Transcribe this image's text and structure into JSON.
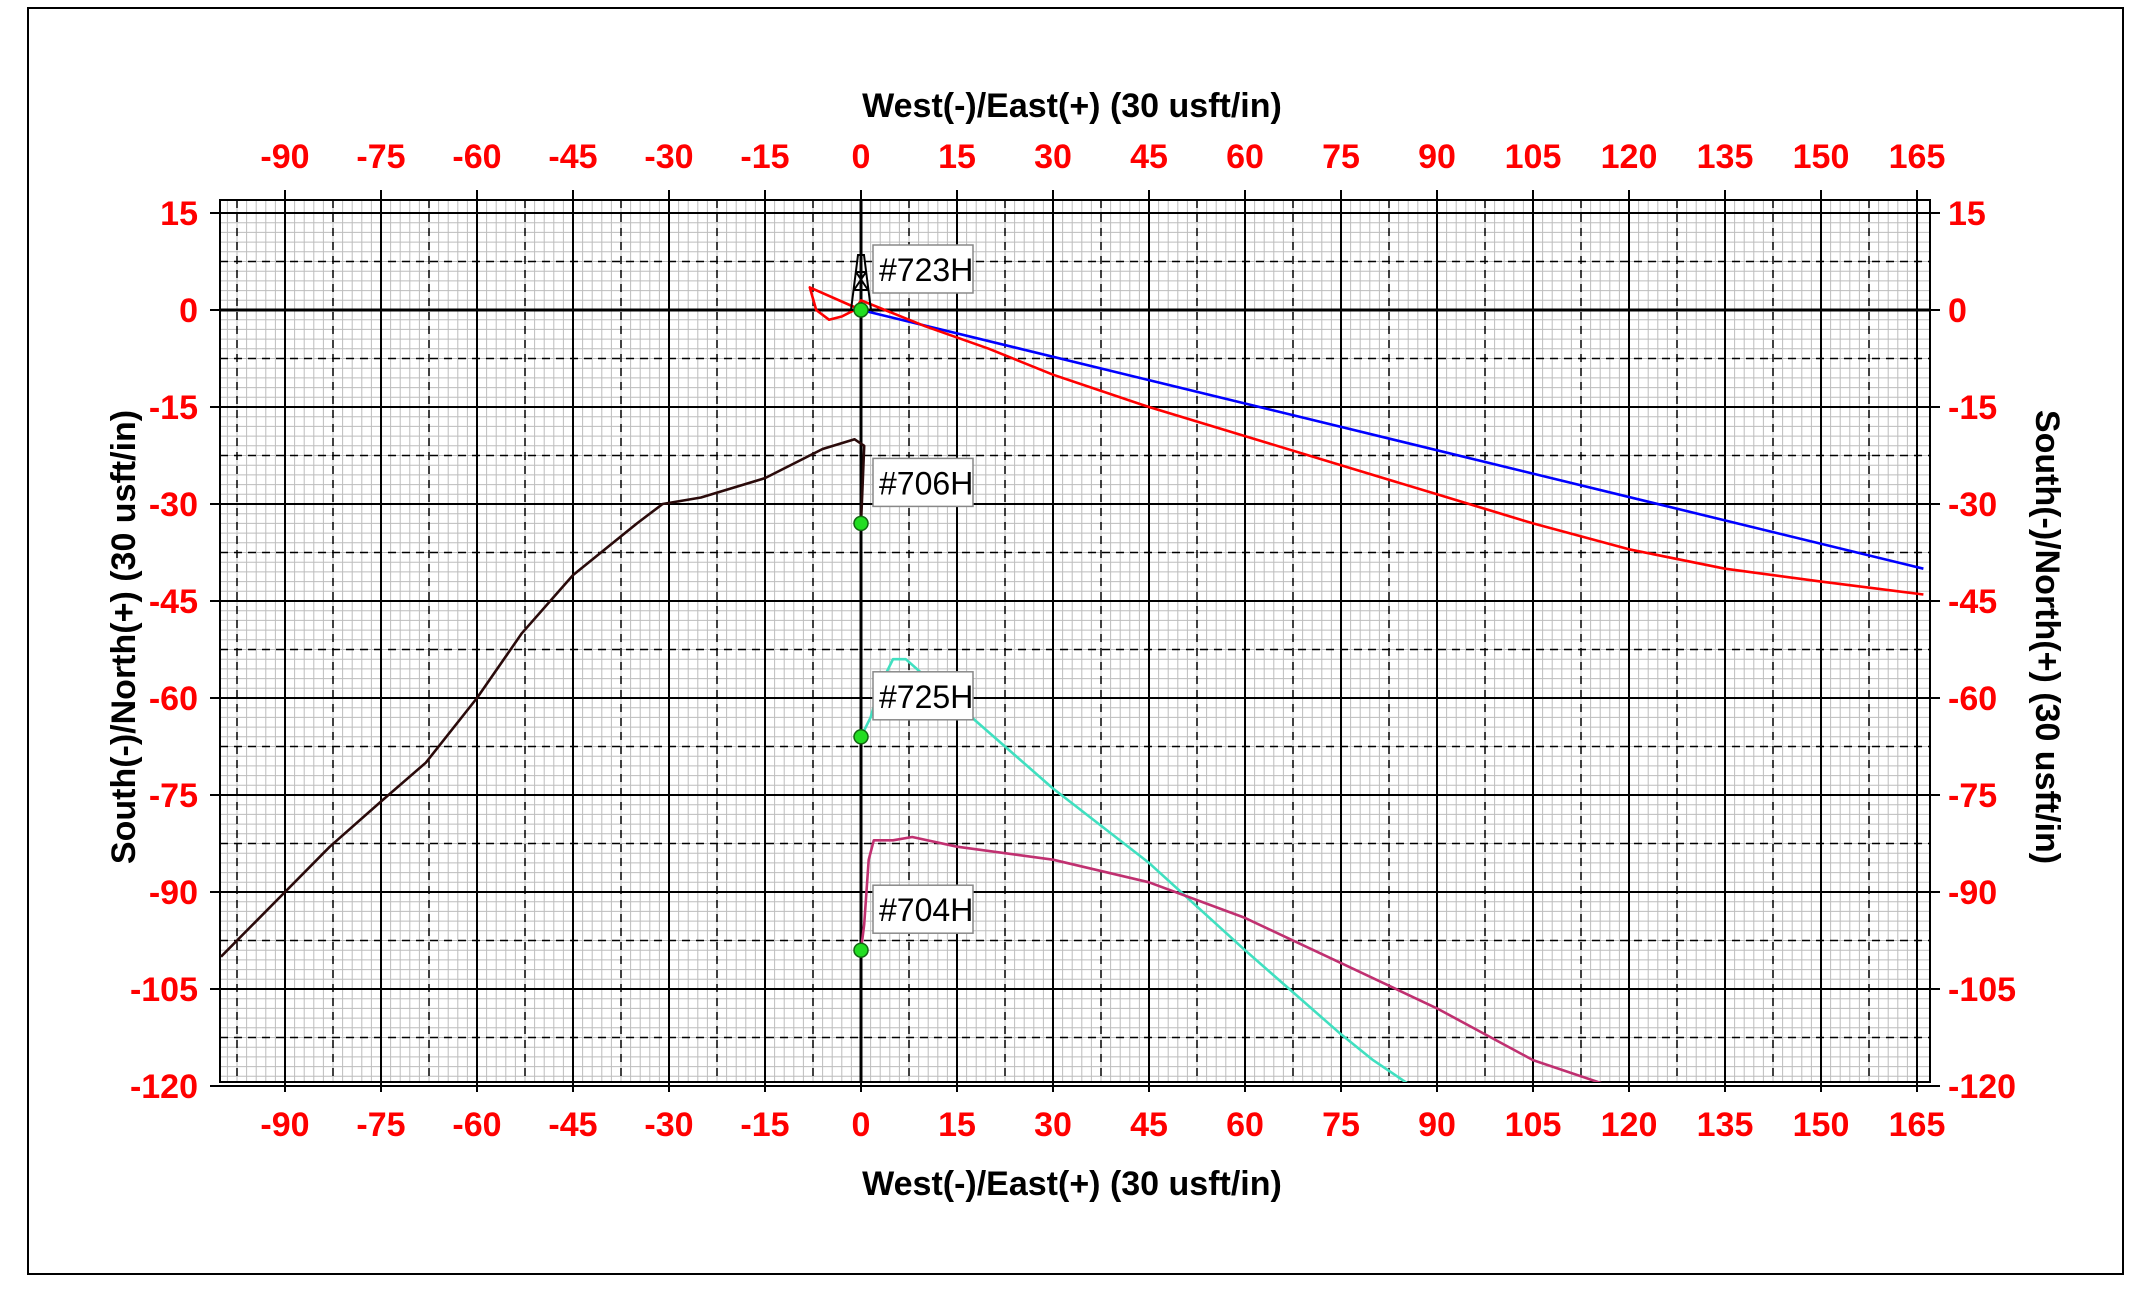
{
  "chart_data": {
    "type": "line",
    "title": "",
    "xlabel": "West(-)/East(+) (30 usft/in)",
    "ylabel": "South(-)/North(+) (30 usft/in)",
    "xlim": [
      -100,
      166
    ],
    "ylim": [
      -120,
      16
    ],
    "xticks": [
      -90,
      -75,
      -60,
      -45,
      -30,
      -15,
      0,
      15,
      30,
      45,
      60,
      75,
      90,
      105,
      120,
      135,
      150,
      165
    ],
    "yticks": [
      15,
      0,
      -15,
      -30,
      -45,
      -60,
      -75,
      -90,
      -105,
      -120
    ],
    "grid": true,
    "colors": {
      "tick_label": "#ff0000",
      "axis_title": "#000000"
    },
    "rig_icon": "drilling-rig-icon",
    "series": [
      {
        "name": "#723H",
        "color": "#0000ff",
        "x": [
          0,
          166
        ],
        "y": [
          0,
          -40
        ]
      },
      {
        "name": "#723H",
        "color": "#ff0000",
        "x": [
          0,
          -8,
          -7,
          -5,
          -3,
          -1,
          0,
          10,
          20,
          30,
          45,
          60,
          75,
          90,
          105,
          120,
          135,
          150,
          166
        ],
        "y": [
          0,
          3.5,
          0,
          -1.5,
          -1,
          0,
          1.5,
          -2.5,
          -6,
          -10,
          -15,
          -19.5,
          -24,
          -28.5,
          -33,
          -37,
          -40,
          -42,
          -44
        ]
      },
      {
        "name": "#706H",
        "color": "#2a0a0a",
        "x": [
          0,
          0.3,
          0.5,
          -1,
          -6,
          -15,
          -25,
          -31,
          -35,
          -40,
          -45,
          -53,
          -60,
          -68,
          -75,
          -83,
          -90,
          -100
        ],
        "y": [
          -33,
          -26,
          -21,
          -20,
          -21.5,
          -26,
          -29,
          -30,
          -33,
          -37,
          -41,
          -50,
          -60,
          -70,
          -76,
          -83,
          -90,
          -100
        ]
      },
      {
        "name": "#725H",
        "color": "#40e0c0",
        "x": [
          0,
          1.5,
          3,
          5,
          7,
          15,
          30,
          45,
          60,
          75,
          80,
          86
        ],
        "y": [
          -66,
          -63,
          -58,
          -54,
          -54,
          -61,
          -74,
          -85.5,
          -99,
          -112,
          -116,
          -120
        ]
      },
      {
        "name": "#704H",
        "color": "#c03070",
        "x": [
          0,
          0.5,
          1.2,
          2,
          5,
          8,
          15,
          30,
          45,
          60,
          75,
          90,
          105,
          117
        ],
        "y": [
          -99,
          -95,
          -85,
          -82,
          -82,
          -81.5,
          -83,
          -85,
          -88.5,
          -94,
          -101,
          -108,
          -116,
          -120
        ]
      }
    ],
    "wells": [
      {
        "name": "#723H",
        "x": 0,
        "y": 0
      },
      {
        "name": "#706H",
        "x": 0,
        "y": -33
      },
      {
        "name": "#725H",
        "x": 0,
        "y": -66
      },
      {
        "name": "#704H",
        "x": 0,
        "y": -99
      }
    ]
  }
}
